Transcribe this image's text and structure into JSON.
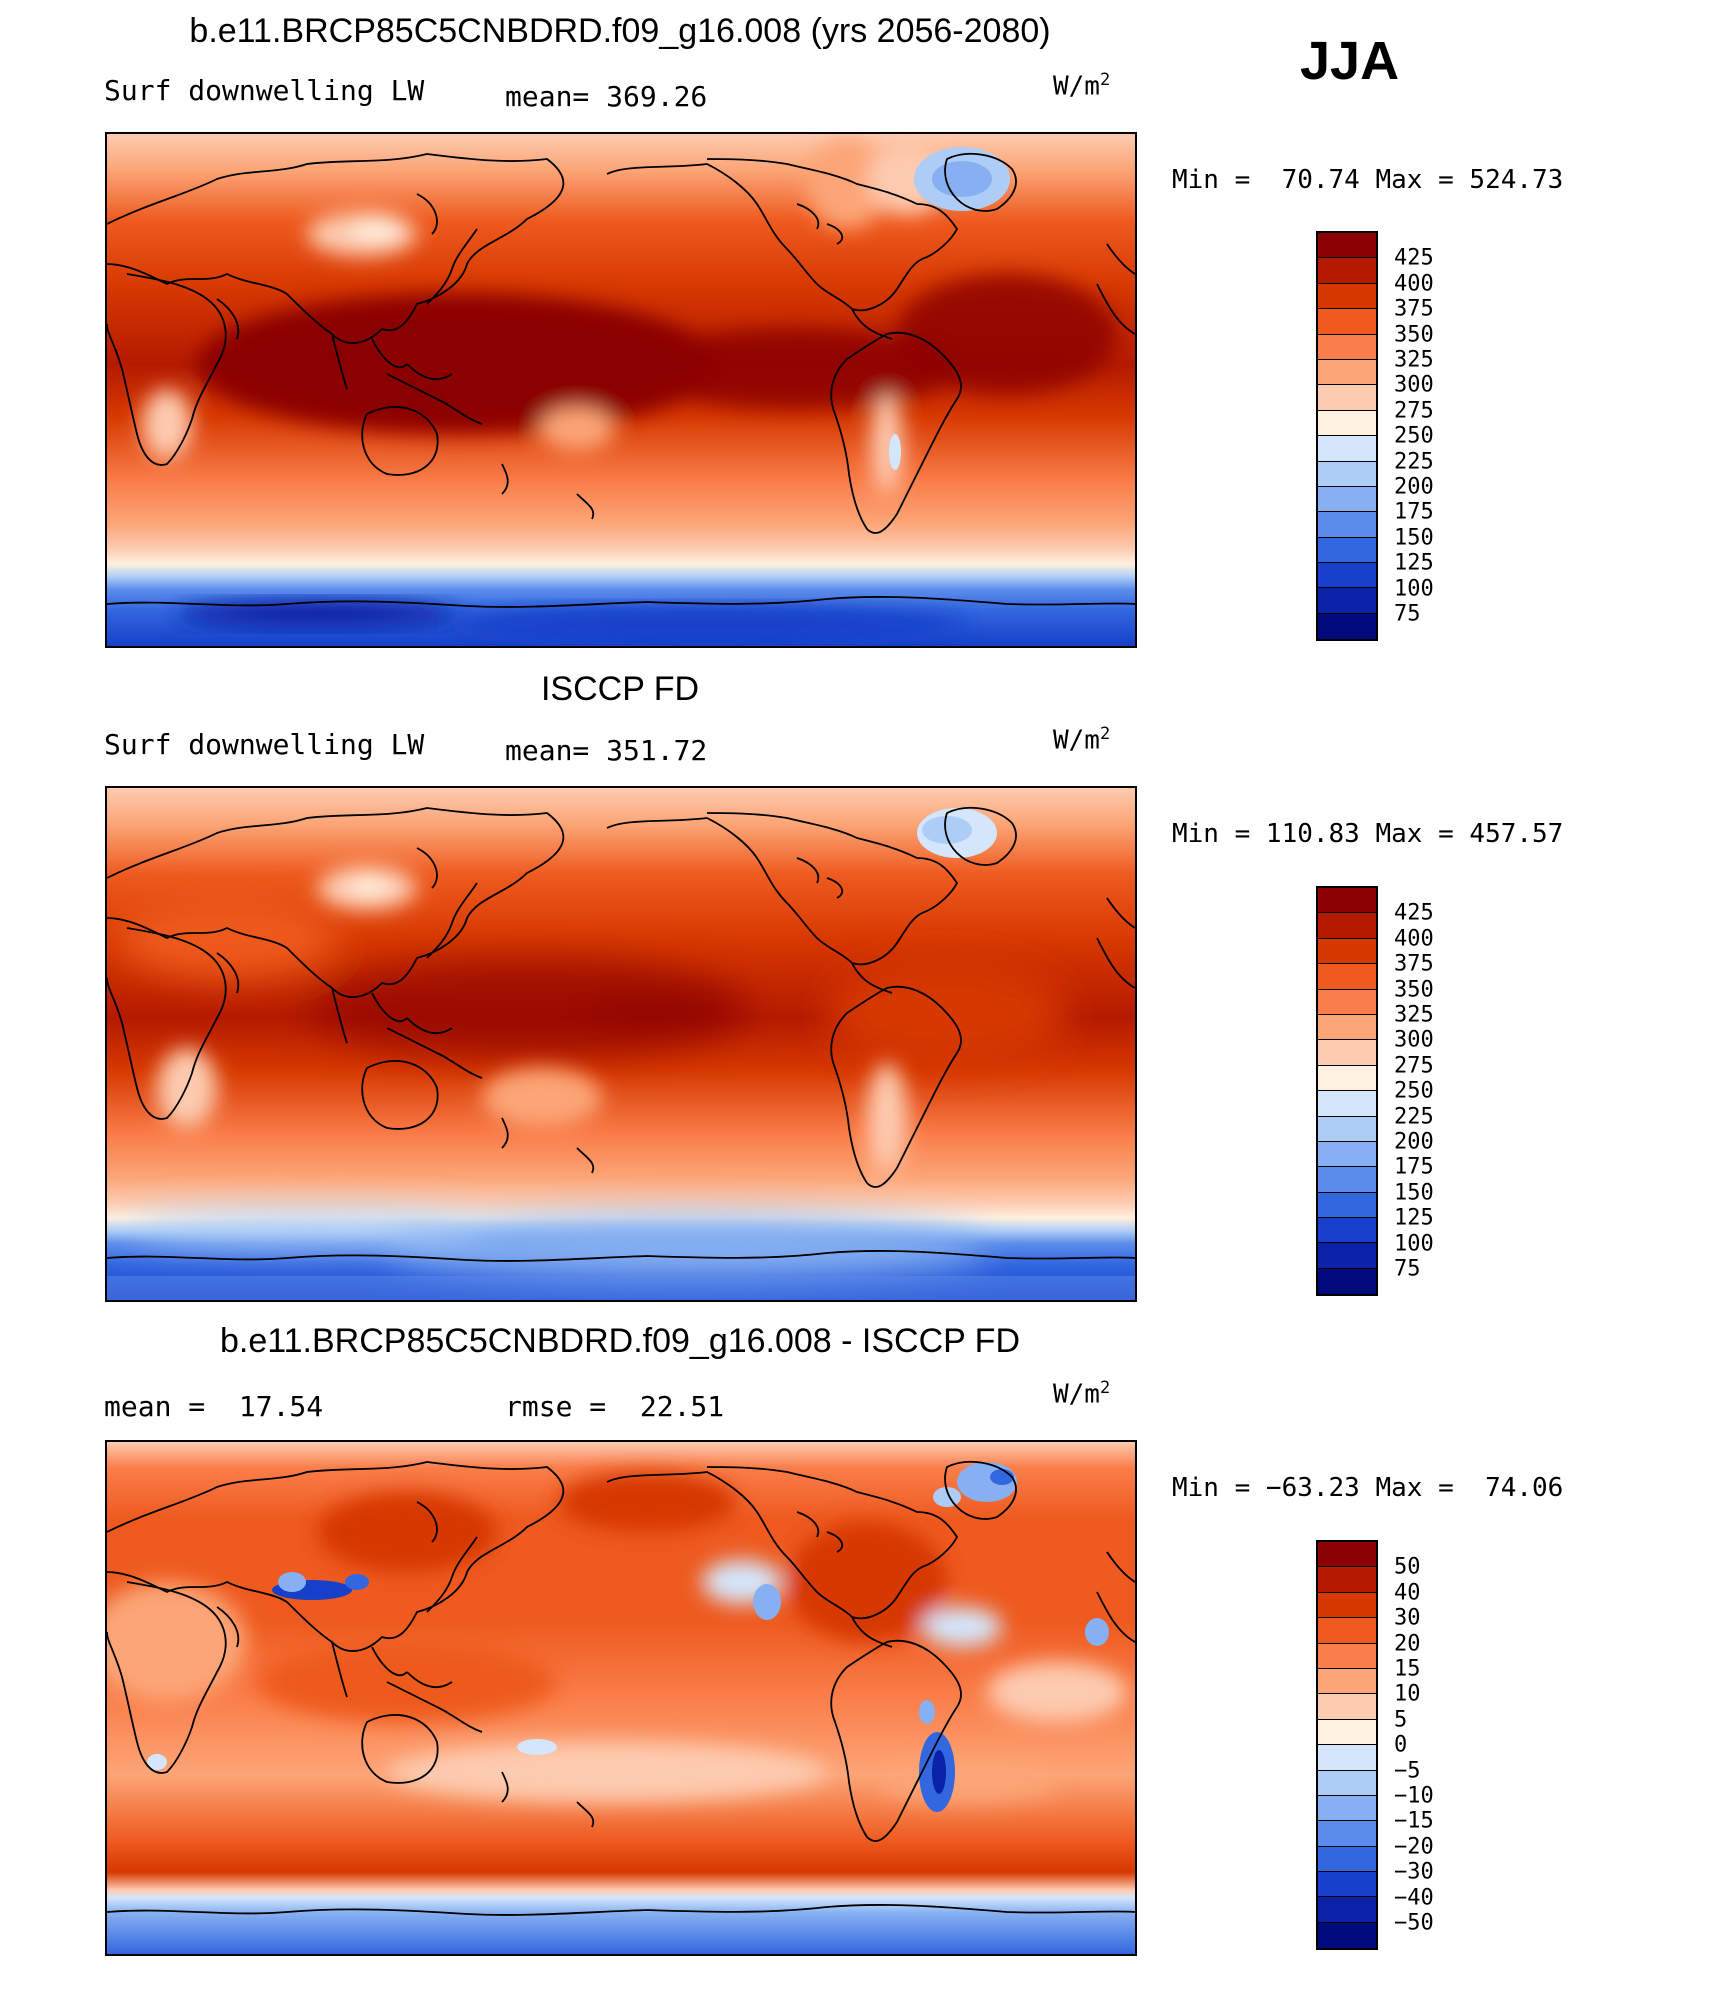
{
  "season": "JJA",
  "units": "W/m",
  "units_sup": "2",
  "panels": [
    {
      "title": "b.e11.BRCP85C5CNBDRD.f09_g16.008 (yrs 2056-2080)",
      "left_label": "Surf downwelling LW",
      "center_label": "mean= 369.26",
      "minmax": "Min =  70.74 Max = 524.73",
      "colorbar": {
        "labels": [
          "425",
          "400",
          "375",
          "350",
          "325",
          "300",
          "275",
          "250",
          "225",
          "200",
          "175",
          "150",
          "125",
          "100",
          "75"
        ],
        "colors": [
          "#8b0000",
          "#b41a00",
          "#d63800",
          "#ee5a1f",
          "#fa7e4a",
          "#fca577",
          "#fdcbb0",
          "#fff0e0",
          "#d4e6fb",
          "#aecdf6",
          "#86b0f1",
          "#5b8ceb",
          "#3367e0",
          "#1640c9",
          "#0a22a5",
          "#000a7a"
        ]
      }
    },
    {
      "title": "ISCCP FD",
      "left_label": "Surf downwelling LW",
      "center_label": "mean= 351.72",
      "minmax": "Min = 110.83 Max = 457.57",
      "colorbar": {
        "labels": [
          "425",
          "400",
          "375",
          "350",
          "325",
          "300",
          "275",
          "250",
          "225",
          "200",
          "175",
          "150",
          "125",
          "100",
          "75"
        ],
        "colors": [
          "#8b0000",
          "#b41a00",
          "#d63800",
          "#ee5a1f",
          "#fa7e4a",
          "#fca577",
          "#fdcbb0",
          "#fff0e0",
          "#d4e6fb",
          "#aecdf6",
          "#86b0f1",
          "#5b8ceb",
          "#3367e0",
          "#1640c9",
          "#0a22a5",
          "#000a7a"
        ]
      }
    },
    {
      "title": "b.e11.BRCP85C5CNBDRD.f09_g16.008 - ISCCP FD",
      "left_label": "mean =  17.54",
      "center_label": "rmse =  22.51",
      "minmax": "Min = −63.23 Max =  74.06",
      "colorbar": {
        "labels": [
          "50",
          "40",
          "30",
          "20",
          "15",
          "10",
          "5",
          "0",
          "−5",
          "−10",
          "−15",
          "−20",
          "−30",
          "−40",
          "−50"
        ],
        "colors": [
          "#8b0000",
          "#b41a00",
          "#d63800",
          "#ee5a1f",
          "#fa7e4a",
          "#fca577",
          "#fdcbb0",
          "#fff0e0",
          "#d4e6fb",
          "#aecdf6",
          "#86b0f1",
          "#5b8ceb",
          "#3367e0",
          "#1640c9",
          "#0a22a5",
          "#000a7a"
        ]
      }
    }
  ]
}
